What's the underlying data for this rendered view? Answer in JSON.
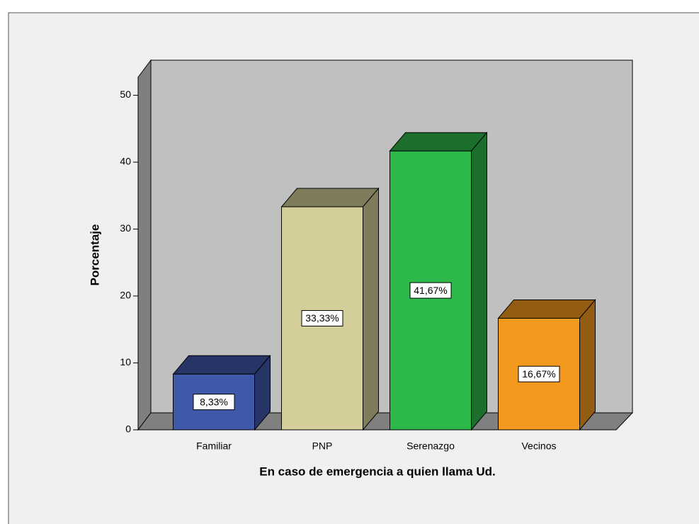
{
  "chart_data": {
    "type": "bar3d",
    "x_label": "En caso de emergencia a quien llama Ud.",
    "y_label": "Porcentaje",
    "categories": [
      "Familiar",
      "PNP",
      "Serenazgo",
      "Vecinos"
    ],
    "values": [
      8.33,
      33.33,
      41.67,
      16.67
    ],
    "value_labels": [
      "8,33%",
      "33,33%",
      "41,67%",
      "16,67%"
    ],
    "colors": [
      "#3f58a8",
      "#d4cf9a",
      "#2db84a",
      "#f39a1e"
    ],
    "ylim": [
      0,
      52.7
    ],
    "yticks": [
      0,
      10,
      20,
      30,
      40,
      50
    ]
  }
}
